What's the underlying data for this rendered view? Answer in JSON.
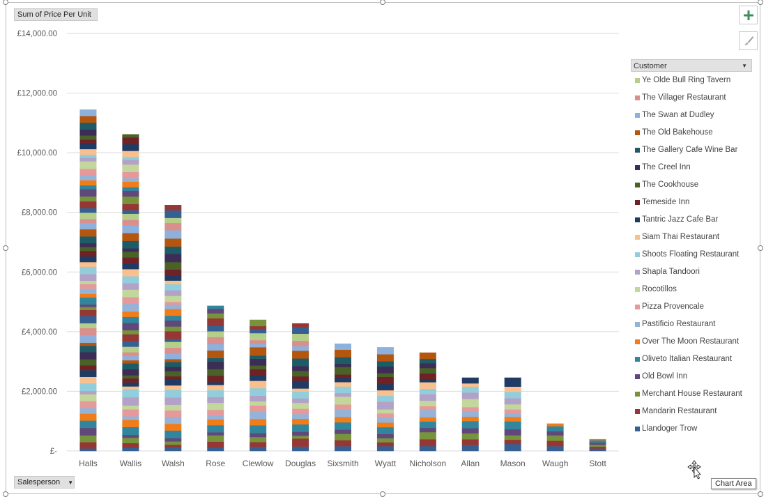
{
  "chart_data": {
    "type": "bar",
    "stacked": true,
    "value_field": "Sum of Price Per Unit",
    "category_field": "Salesperson",
    "series_field": "Customer",
    "categories": [
      "Halls",
      "Wallis",
      "Walsh",
      "Rose",
      "Clewlow",
      "Douglas",
      "Sixsmith",
      "Wyatt",
      "Nicholson",
      "Allan",
      "Mason",
      "Waugh",
      "Stott"
    ],
    "totals": [
      11450,
      10620,
      8250,
      4870,
      4400,
      4280,
      3600,
      3480,
      3300,
      2460,
      2460,
      920,
      400
    ],
    "ylim": [
      0,
      14000
    ],
    "yticks": [
      0,
      2000,
      4000,
      6000,
      8000,
      10000,
      12000,
      14000
    ],
    "ytick_labels": [
      "£-",
      "£2,000.00",
      "£4,000.00",
      "£6,000.00",
      "£8,000.00",
      "£10,000.00",
      "£12,000.00",
      "£14,000.00"
    ],
    "grid": true,
    "legend_position": "right",
    "legend_title": "Customer",
    "series": [
      {
        "name": "Ye Olde Bull Ring Tavern",
        "color": "#b5cf8a"
      },
      {
        "name": "The Villager Restaurant",
        "color": "#d98f8d"
      },
      {
        "name": "The Swan at Dudley",
        "color": "#8eb0dd"
      },
      {
        "name": "The Old Bakehouse",
        "color": "#b5560f"
      },
      {
        "name": "The Gallery Cafe Wine Bar",
        "color": "#1f5b66"
      },
      {
        "name": "The Creel Inn",
        "color": "#3b2d55"
      },
      {
        "name": "The Cookhouse",
        "color": "#4a6128"
      },
      {
        "name": "Temeside Inn",
        "color": "#6e2226"
      },
      {
        "name": "Tantric Jazz Cafe Bar",
        "color": "#203b63"
      },
      {
        "name": "Siam Thai Restaurant",
        "color": "#f9c08f"
      },
      {
        "name": "Shoots Floating Restaurant",
        "color": "#92cddc"
      },
      {
        "name": "Shapla Tandoori",
        "color": "#b3a2c7"
      },
      {
        "name": "Rocotillos",
        "color": "#c3d69b"
      },
      {
        "name": "Pizza Provencale",
        "color": "#e6999a"
      },
      {
        "name": "Pastificio Restaurant",
        "color": "#95b3d7"
      },
      {
        "name": "Over The Moon Restaurant",
        "color": "#f07c1a"
      },
      {
        "name": "Oliveto Italian Restaurant",
        "color": "#31859c"
      },
      {
        "name": "Old Bowl Inn",
        "color": "#60497a"
      },
      {
        "name": "Merchant House Restaurant",
        "color": "#77933c"
      },
      {
        "name": "Mandarin Restaurant",
        "color": "#953735"
      },
      {
        "name": "Llandoger Trow",
        "color": "#376092"
      }
    ]
  },
  "buttons": {
    "add_element_icon": "plus-icon",
    "style_icon": "brush-icon",
    "salesperson_label": "Salesperson",
    "value_label": "Sum of Price Per Unit",
    "customer_label": "Customer"
  },
  "tooltip": "Chart Area"
}
